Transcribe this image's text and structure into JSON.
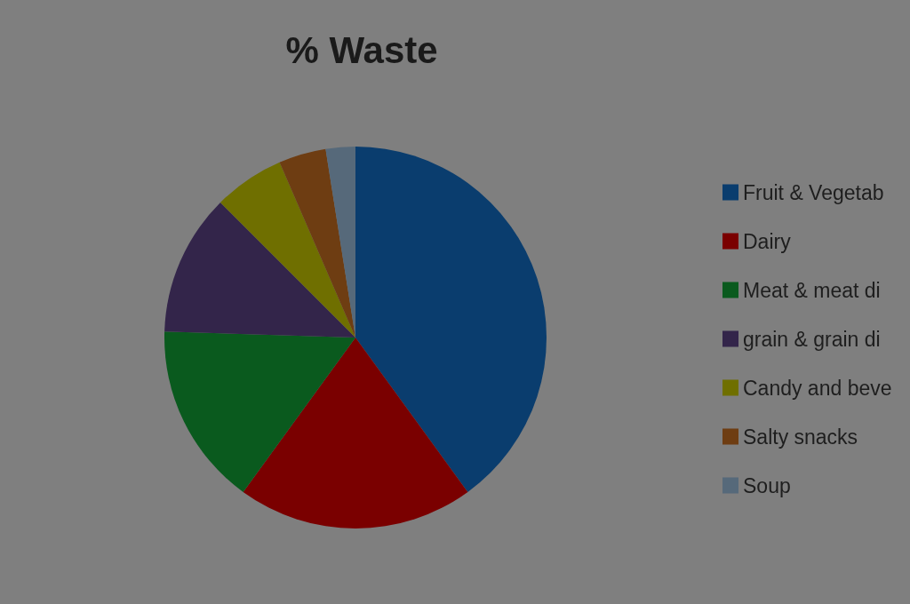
{
  "chart_data": {
    "type": "pie",
    "title": "% Waste",
    "categories": [
      "Fruit & Vegetab",
      "Dairy",
      "Meat & meat di",
      "grain & grain di",
      "Candy and beve",
      "Salty snacks",
      "Soup"
    ],
    "values": [
      40,
      20,
      15.5,
      12,
      6,
      4,
      2.5
    ],
    "colors": [
      "#0a3d6e",
      "#7a0000",
      "#0a5a1e",
      "#33254a",
      "#6f6f00",
      "#6e3d12",
      "#56697a"
    ],
    "legend": "right"
  }
}
